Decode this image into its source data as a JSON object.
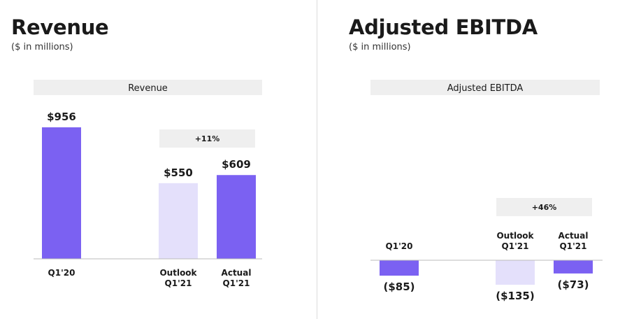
{
  "colors": {
    "actual": "#7b61f2",
    "outlook": "#e4e0fb",
    "header_bg": "#efefef",
    "axis": "#bbbbbb",
    "text": "#1a1a1a"
  },
  "left": {
    "title": "Revenue",
    "subtitle": "($ in millions)"
  },
  "right": {
    "title": "Adjusted EBITDA",
    "subtitle": "($ in millions)"
  },
  "chart_data": [
    {
      "type": "bar",
      "header": "Revenue",
      "categories": [
        "Q1'20",
        "Outlook Q1'21",
        "Actual Q1'21"
      ],
      "category_lines": [
        [
          "Q1'20"
        ],
        [
          "Outlook",
          "Q1'21"
        ],
        [
          "Actual",
          "Q1'21"
        ]
      ],
      "values": [
        956,
        550,
        609
      ],
      "value_labels": [
        "$956",
        "$550",
        "$609"
      ],
      "bar_kinds": [
        "actual",
        "outlook",
        "actual"
      ],
      "annotation": "+11%",
      "ylim": [
        0,
        956
      ],
      "grid": false
    },
    {
      "type": "bar",
      "header": "Adjusted EBITDA",
      "categories": [
        "Q1'20",
        "Outlook Q1'21",
        "Actual Q1'21"
      ],
      "category_lines": [
        [
          "Q1'20"
        ],
        [
          "Outlook",
          "Q1'21"
        ],
        [
          "Actual",
          "Q1'21"
        ]
      ],
      "values": [
        -85,
        -135,
        -73
      ],
      "value_labels": [
        "($85)",
        "($135)",
        "($73)"
      ],
      "bar_kinds": [
        "actual",
        "outlook",
        "actual"
      ],
      "annotation": "+46%",
      "ylim": [
        -135,
        0
      ],
      "grid": false
    }
  ]
}
